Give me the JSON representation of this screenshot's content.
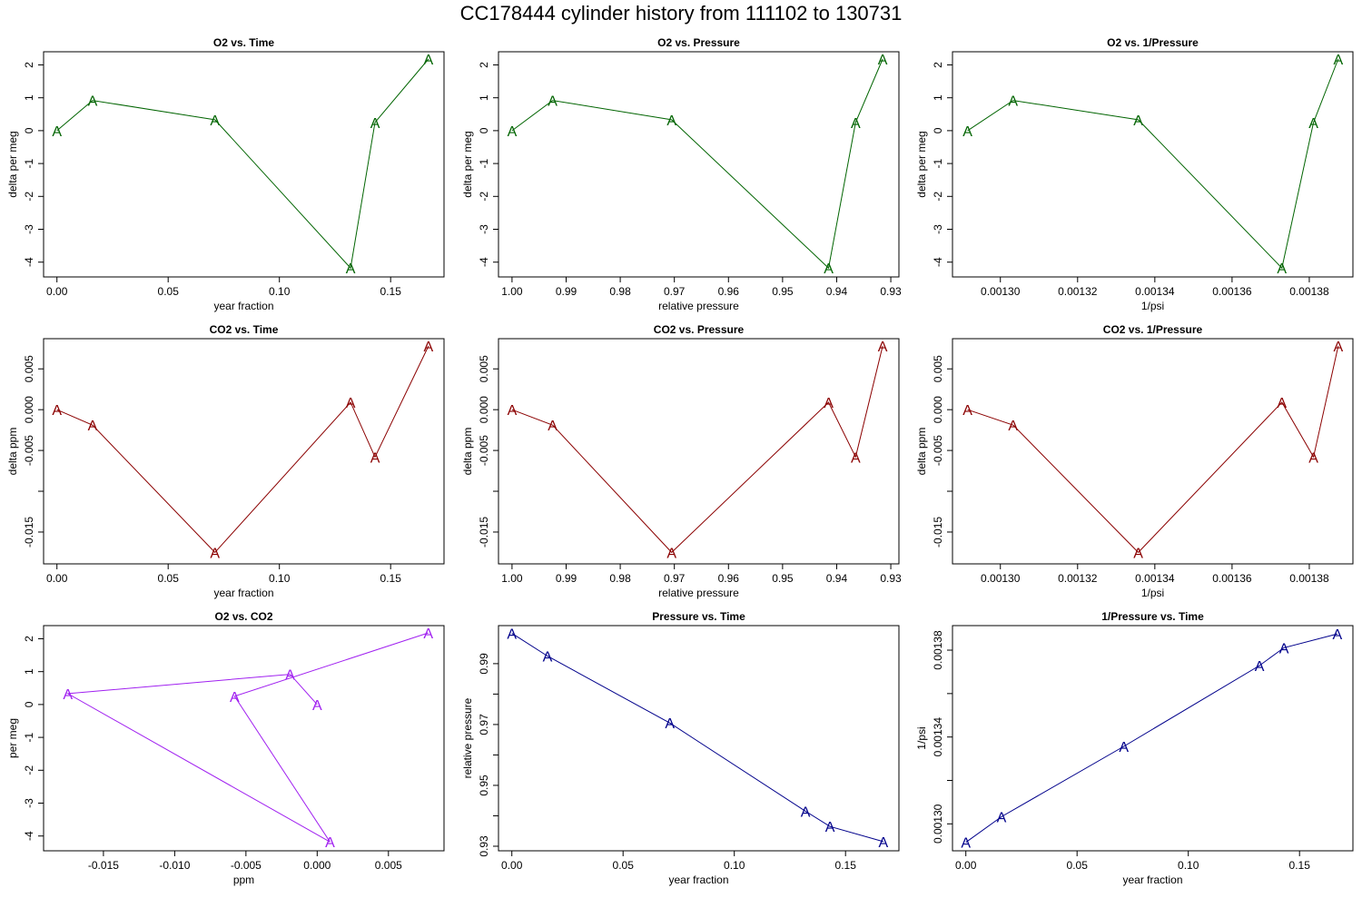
{
  "title": "CC178444   cylinder history from  111102  to  130731",
  "chart_data": [
    {
      "type": "line",
      "title": "O2 vs. Time",
      "xlabel": "year fraction",
      "ylabel": "delta per meg",
      "marker": "A",
      "color": "#006400",
      "xlim": [
        -0.006,
        0.174
      ],
      "ylim": [
        -4.45,
        2.4
      ],
      "reverse_x": false,
      "xticks": [
        0.0,
        0.05,
        0.1,
        0.15
      ],
      "xtick_labels": [
        "0.00",
        "0.05",
        "0.10",
        "0.15"
      ],
      "yticks": [
        -4,
        -3,
        -2,
        -1,
        0,
        1,
        2
      ],
      "ytick_labels": [
        "-4",
        "-3",
        "-2",
        "-1",
        "0",
        "1",
        "2"
      ],
      "x": [
        0.0,
        0.016,
        0.071,
        0.132,
        0.143,
        0.167
      ],
      "y": [
        0.0,
        0.92,
        0.33,
        -4.18,
        0.25,
        2.18
      ]
    },
    {
      "type": "line",
      "title": "O2 vs. Pressure",
      "xlabel": "relative pressure",
      "ylabel": "delta per meg",
      "marker": "A",
      "color": "#006400",
      "xlim": [
        1.0025,
        0.9285
      ],
      "ylim": [
        -4.45,
        2.4
      ],
      "reverse_x": true,
      "xticks": [
        1.0,
        0.99,
        0.98,
        0.97,
        0.96,
        0.95,
        0.94,
        0.93
      ],
      "xtick_labels": [
        "1.00",
        "0.99",
        "0.98",
        "0.97",
        "0.96",
        "0.95",
        "0.94",
        "0.93"
      ],
      "yticks": [
        -4,
        -3,
        -2,
        -1,
        0,
        1,
        2
      ],
      "ytick_labels": [
        "-4",
        "-3",
        "-2",
        "-1",
        "0",
        "1",
        "2"
      ],
      "x": [
        1.0,
        0.9925,
        0.9705,
        0.9415,
        0.9365,
        0.9315
      ],
      "y": [
        0.0,
        0.92,
        0.33,
        -4.18,
        0.25,
        2.18
      ]
    },
    {
      "type": "line",
      "title": "O2 vs. 1/Pressure",
      "xlabel": "1/psi",
      "ylabel": "delta per meg",
      "marker": "A",
      "color": "#006400",
      "xlim": [
        0.0012876,
        0.0013913
      ],
      "ylim": [
        -4.45,
        2.4
      ],
      "reverse_x": false,
      "xticks": [
        0.0013,
        0.00132,
        0.00134,
        0.00136,
        0.00138
      ],
      "xtick_labels": [
        "0.00130",
        "0.00132",
        "0.00134",
        "0.00136",
        "0.00138"
      ],
      "yticks": [
        -4,
        -3,
        -2,
        -1,
        0,
        1,
        2
      ],
      "ytick_labels": [
        "-4",
        "-3",
        "-2",
        "-1",
        "0",
        "1",
        "2"
      ],
      "x": [
        0.0012915,
        0.0013033,
        0.0013357,
        0.0013729,
        0.0013811,
        0.0013875
      ],
      "y": [
        0.0,
        0.92,
        0.33,
        -4.18,
        0.25,
        2.18
      ]
    },
    {
      "type": "line",
      "title": "CO2 vs. Time",
      "xlabel": "year fraction",
      "ylabel": "delta ppm",
      "marker": "A",
      "color": "#8b0000",
      "xlim": [
        -0.006,
        0.174
      ],
      "ylim": [
        -0.0189,
        0.0087
      ],
      "reverse_x": false,
      "xticks": [
        0.0,
        0.05,
        0.1,
        0.15
      ],
      "xtick_labels": [
        "0.00",
        "0.05",
        "0.10",
        "0.15"
      ],
      "yticks": [
        -0.015,
        -0.01,
        -0.005,
        0.0,
        0.005
      ],
      "ytick_labels": [
        "-0.015",
        "",
        "-0.005",
        "0.000",
        "0.005"
      ],
      "x": [
        0.0,
        0.016,
        0.071,
        0.132,
        0.143,
        0.167
      ],
      "y": [
        0.0,
        -0.0019,
        -0.0175,
        0.0009,
        -0.0058,
        0.0078
      ]
    },
    {
      "type": "line",
      "title": "CO2 vs. Pressure",
      "xlabel": "relative pressure",
      "ylabel": "delta ppm",
      "marker": "A",
      "color": "#8b0000",
      "xlim": [
        1.0025,
        0.9285
      ],
      "ylim": [
        -0.0189,
        0.0087
      ],
      "reverse_x": true,
      "xticks": [
        1.0,
        0.99,
        0.98,
        0.97,
        0.96,
        0.95,
        0.94,
        0.93
      ],
      "xtick_labels": [
        "1.00",
        "0.99",
        "0.98",
        "0.97",
        "0.96",
        "0.95",
        "0.94",
        "0.93"
      ],
      "yticks": [
        -0.015,
        -0.01,
        -0.005,
        0.0,
        0.005
      ],
      "ytick_labels": [
        "-0.015",
        "",
        "-0.005",
        "0.000",
        "0.005"
      ],
      "x": [
        1.0,
        0.9925,
        0.9705,
        0.9415,
        0.9365,
        0.9315
      ],
      "y": [
        0.0,
        -0.0019,
        -0.0175,
        0.0009,
        -0.0058,
        0.0078
      ]
    },
    {
      "type": "line",
      "title": "CO2 vs. 1/Pressure",
      "xlabel": "1/psi",
      "ylabel": "delta ppm",
      "marker": "A",
      "color": "#8b0000",
      "xlim": [
        0.0012876,
        0.0013913
      ],
      "ylim": [
        -0.0189,
        0.0087
      ],
      "reverse_x": false,
      "xticks": [
        0.0013,
        0.00132,
        0.00134,
        0.00136,
        0.00138
      ],
      "xtick_labels": [
        "0.00130",
        "0.00132",
        "0.00134",
        "0.00136",
        "0.00138"
      ],
      "yticks": [
        -0.015,
        -0.01,
        -0.005,
        0.0,
        0.005
      ],
      "ytick_labels": [
        "-0.015",
        "",
        "-0.005",
        "0.000",
        "0.005"
      ],
      "x": [
        0.0012915,
        0.0013033,
        0.0013357,
        0.0013729,
        0.0013811,
        0.0013875
      ],
      "y": [
        0.0,
        -0.0019,
        -0.0175,
        0.0009,
        -0.0058,
        0.0078
      ]
    },
    {
      "type": "line",
      "title": "O2 vs. CO2",
      "xlabel": "ppm",
      "ylabel": "per meg",
      "marker": "A",
      "color": "#a020f0",
      "xlim": [
        -0.0192,
        0.0089
      ],
      "ylim": [
        -4.45,
        2.4
      ],
      "reverse_x": false,
      "xticks": [
        -0.015,
        -0.01,
        -0.005,
        0.0,
        0.005
      ],
      "xtick_labels": [
        "-0.015",
        "-0.010",
        "-0.005",
        "0.000",
        "0.005"
      ],
      "yticks": [
        -4,
        -3,
        -2,
        -1,
        0,
        1,
        2
      ],
      "ytick_labels": [
        "-4",
        "-3",
        "-2",
        "-1",
        "0",
        "1",
        "2"
      ],
      "x": [
        0.0,
        -0.0019,
        -0.0175,
        0.0009,
        -0.0058,
        0.0078
      ],
      "y": [
        0.0,
        0.92,
        0.33,
        -4.18,
        0.25,
        2.18
      ]
    },
    {
      "type": "line",
      "title": "Pressure vs. Time",
      "xlabel": "year fraction",
      "ylabel": "relative pressure",
      "marker": "A",
      "color": "#00008b",
      "xlim": [
        -0.006,
        0.174
      ],
      "ylim": [
        0.9285,
        1.0025
      ],
      "reverse_x": false,
      "xticks": [
        0.0,
        0.05,
        0.1,
        0.15
      ],
      "xtick_labels": [
        "0.00",
        "0.05",
        "0.10",
        "0.15"
      ],
      "yticks": [
        0.93,
        0.94,
        0.95,
        0.96,
        0.97,
        0.98,
        0.99
      ],
      "ytick_labels": [
        "0.93",
        "",
        "0.95",
        "",
        "0.97",
        "",
        "0.99"
      ],
      "x": [
        0.0,
        0.016,
        0.071,
        0.132,
        0.143,
        0.167
      ],
      "y": [
        1.0,
        0.9925,
        0.9705,
        0.9415,
        0.9365,
        0.9315
      ]
    },
    {
      "type": "line",
      "title": "1/Pressure vs. Time",
      "xlabel": "year fraction",
      "ylabel": "1/psi",
      "marker": "A",
      "color": "#00008b",
      "xlim": [
        -0.006,
        0.174
      ],
      "ylim": [
        0.0012876,
        0.0013913
      ],
      "reverse_x": false,
      "xticks": [
        0.0,
        0.05,
        0.1,
        0.15
      ],
      "xtick_labels": [
        "0.00",
        "0.05",
        "0.10",
        "0.15"
      ],
      "yticks": [
        0.0013,
        0.00132,
        0.00134,
        0.00136,
        0.00138
      ],
      "ytick_labels": [
        "0.00130",
        "",
        "0.00134",
        "",
        "0.00138"
      ],
      "x": [
        0.0,
        0.016,
        0.071,
        0.132,
        0.143,
        0.167
      ],
      "y": [
        0.0012915,
        0.0013033,
        0.0013357,
        0.0013729,
        0.0013811,
        0.0013875
      ]
    }
  ]
}
